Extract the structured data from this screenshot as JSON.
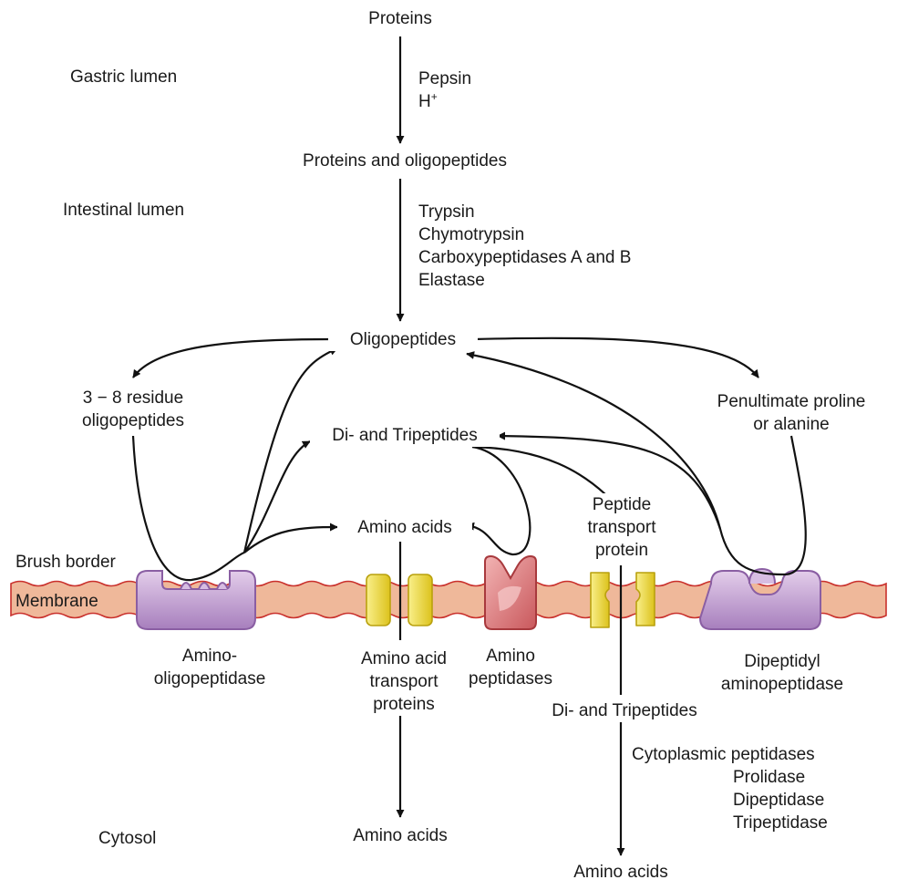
{
  "labels": {
    "proteins": "Proteins",
    "gastric_lumen": "Gastric lumen",
    "pepsin": "Pepsin",
    "h_base": "H",
    "h_sup": "+",
    "proteins_oligopeptides": "Proteins and oligopeptides",
    "intestinal_lumen": "Intestinal lumen",
    "trypsin": "Trypsin",
    "chymotrypsin": "Chymotrypsin",
    "carboxypeptidases": "Carboxypeptidases A and B",
    "elastase": "Elastase",
    "oligopeptides": "Oligopeptides",
    "residue_line1": "3 − 8 residue",
    "residue_line2": "oligopeptides",
    "penultimate_line1": "Penultimate proline",
    "penultimate_line2": "or alanine",
    "di_tripeptides_top": "Di- and Tripeptides",
    "amino_acids_mid": "Amino acids",
    "peptide_transport_line1": "Peptide",
    "peptide_transport_line2": "transport",
    "peptide_transport_line3": "protein",
    "brush_border": "Brush border",
    "membrane": "Membrane",
    "amino_oligo_line1": "Amino-",
    "amino_oligo_line2": "oligopeptidase",
    "aa_transport_line1": "Amino acid",
    "aa_transport_line2": "transport",
    "aa_transport_line3": "proteins",
    "aminopep_line1": "Amino",
    "aminopep_line2": "peptidases",
    "dipeptidyl_line1": "Dipeptidyl",
    "dipeptidyl_line2": "aminopeptidase",
    "di_tripeptides_bottom": "Di- and Tripeptides",
    "cytoplasmic_peptidases": "Cytoplasmic peptidases",
    "prolidase": "Prolidase",
    "dipeptidase": "Dipeptidase",
    "tripeptidase": "Tripeptidase",
    "cytosol": "Cytosol",
    "amino_acids_cytosol": "Amino acids",
    "amino_acids_bottom": "Amino acids"
  },
  "colors": {
    "membrane_fill": "#efb89a",
    "membrane_edge": "#c9302c",
    "enzyme_purple": "#c9a6d6",
    "enzyme_red": "#e4878a",
    "transporter_yellow": "#f2e04a",
    "arrow": "#111111"
  }
}
